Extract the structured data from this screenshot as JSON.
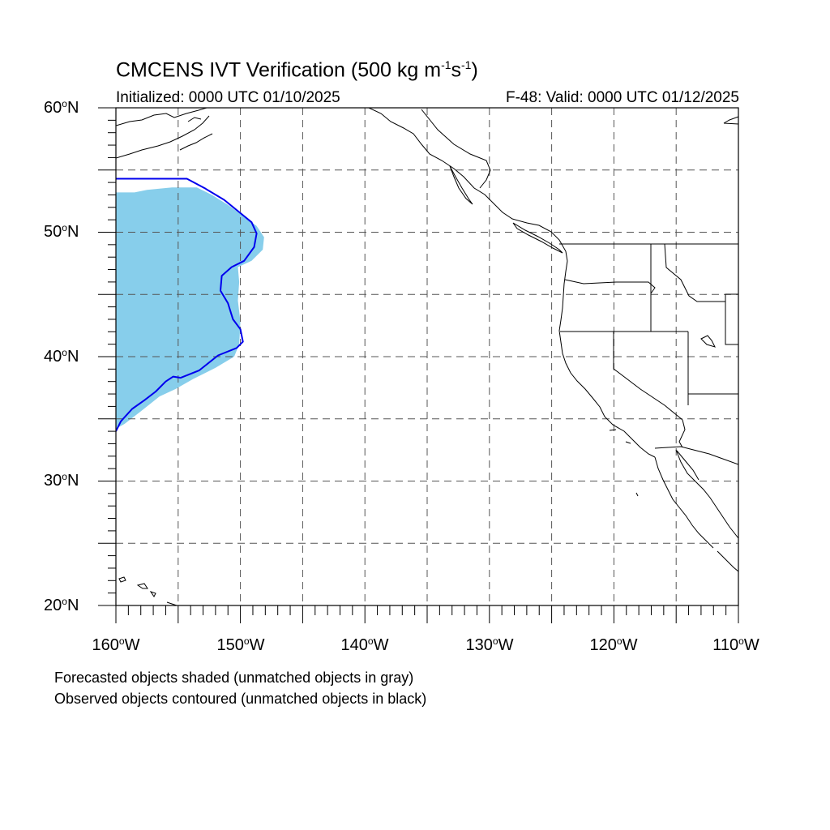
{
  "header": {
    "title_main": "CMCENS IVT Verification (500 kg m",
    "title_exp1": "-1",
    "title_mid": "s",
    "title_exp2": "-1",
    "title_close": ")",
    "initialized": "Initialized: 0000 UTC 01/10/2025",
    "valid": "F-48: Valid: 0000 UTC 01/12/2025"
  },
  "axes": {
    "lat_labels": [
      {
        "num": "60",
        "hemi": "N"
      },
      {
        "num": "50",
        "hemi": "N"
      },
      {
        "num": "40",
        "hemi": "N"
      },
      {
        "num": "30",
        "hemi": "N"
      },
      {
        "num": "20",
        "hemi": "N"
      }
    ],
    "lon_labels": [
      {
        "num": "160",
        "hemi": "W"
      },
      {
        "num": "150",
        "hemi": "W"
      },
      {
        "num": "140",
        "hemi": "W"
      },
      {
        "num": "130",
        "hemi": "W"
      },
      {
        "num": "120",
        "hemi": "W"
      },
      {
        "num": "110",
        "hemi": "W"
      }
    ],
    "lon_range": [
      -160,
      -110
    ],
    "lat_range": [
      20,
      60
    ],
    "grid_spacing_deg": 5,
    "grid": "dashed"
  },
  "legend": {
    "forecast_note": "Forecasted objects shaded (unmatched objects in gray)",
    "observed_note": "Observed objects contoured (unmatched objects in black)"
  },
  "colors": {
    "forecast_fill": "#87ceeb",
    "observed_contour": "#0000ee",
    "coastline": "#000000",
    "grid": "#555555"
  },
  "objects": {
    "forecast_shaded": [
      [
        -160,
        53.2
      ],
      [
        -158.5,
        53.2
      ],
      [
        -157.5,
        53.4
      ],
      [
        -155.5,
        53.6
      ],
      [
        -153.5,
        53.6
      ],
      [
        -152.3,
        53.0
      ],
      [
        -151,
        52.2
      ],
      [
        -149.9,
        51.4
      ],
      [
        -148.7,
        50.5
      ],
      [
        -148.1,
        49.6
      ],
      [
        -148.2,
        48.6
      ],
      [
        -149.1,
        47.7
      ],
      [
        -150.2,
        47.2
      ],
      [
        -150.1,
        46.0
      ],
      [
        -150.2,
        44.5
      ],
      [
        -150.0,
        42.8
      ],
      [
        -150.1,
        41.0
      ],
      [
        -150.5,
        40.0
      ],
      [
        -152.0,
        39.1
      ],
      [
        -153.8,
        38.2
      ],
      [
        -155.2,
        37.4
      ],
      [
        -156.5,
        36.8
      ],
      [
        -158.0,
        35.6
      ],
      [
        -159.3,
        34.6
      ],
      [
        -160,
        34.2
      ]
    ],
    "observed_contour": [
      [
        -160,
        54.3
      ],
      [
        -154.3,
        54.3
      ],
      [
        -152.8,
        53.5
      ],
      [
        -151.3,
        52.6
      ],
      [
        -150.2,
        51.7
      ],
      [
        -149.1,
        50.8
      ],
      [
        -148.7,
        49.9
      ],
      [
        -148.9,
        48.8
      ],
      [
        -149.7,
        47.7
      ],
      [
        -150.7,
        47.2
      ],
      [
        -151.5,
        46.5
      ],
      [
        -151.6,
        45.3
      ],
      [
        -151.0,
        44.3
      ],
      [
        -150.6,
        43.0
      ],
      [
        -150.0,
        42.2
      ],
      [
        -149.8,
        41.2
      ],
      [
        -150.3,
        40.7
      ],
      [
        -151.8,
        40.1
      ],
      [
        -153.3,
        38.9
      ],
      [
        -154.8,
        38.3
      ],
      [
        -155.4,
        38.4
      ],
      [
        -156.0,
        38.0
      ],
      [
        -156.8,
        37.2
      ],
      [
        -157.7,
        36.5
      ],
      [
        -158.7,
        35.8
      ],
      [
        -159.6,
        34.8
      ],
      [
        -160,
        34.0
      ]
    ]
  },
  "map": {
    "states": [
      "Washington",
      "Oregon",
      "California",
      "Idaho",
      "Nevada",
      "Utah",
      "Arizona",
      "Montana",
      "Baja California",
      "Sonora",
      "British Columbia",
      "Alaska"
    ]
  }
}
